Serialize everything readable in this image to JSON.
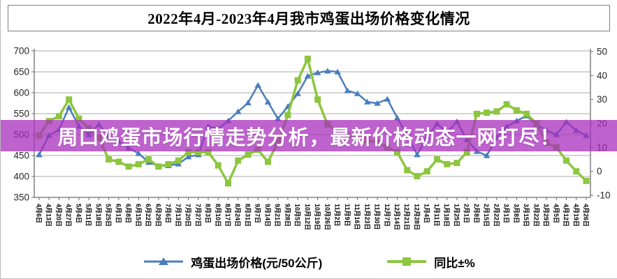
{
  "page": {
    "title": "2022年4月-2023年4月我市鸡蛋出场价格变化情况",
    "banner": "周口鸡蛋市场行情走势分析，最新价格动态一网打尽！"
  },
  "chart_data": {
    "type": "line",
    "title": "2022年4月-2023年4月我市鸡蛋出场价格变化情况",
    "grid": true,
    "legend_position": "bottom",
    "categories": [
      "4月6日",
      "4月13日",
      "4月20日",
      "4月27日",
      "5月4日",
      "5月11日",
      "5月18日",
      "5月25日",
      "6月1日",
      "6月8日",
      "6月15日",
      "6月22日",
      "6月29日",
      "7月6日",
      "7月13日",
      "7月20日",
      "7月27日",
      "8月3日",
      "8月10日",
      "8月17日",
      "8月24日",
      "8月31日",
      "9月7日",
      "9月14日",
      "9月21日",
      "9月28日",
      "10月5日",
      "10月12日",
      "10月19日",
      "10月26日",
      "11月2日",
      "11月9日",
      "11月16日",
      "11月23日",
      "11月30日",
      "12月7日",
      "12月14日",
      "12月21日",
      "12月28日",
      "1月4日",
      "1月11日",
      "1月18日",
      "1月25日",
      "2月1日",
      "2月8日",
      "2月15日",
      "2月22日",
      "3月1日",
      "3月8日",
      "3月15日",
      "3月22日",
      "3月29日",
      "4月5日",
      "4月12日",
      "4月19日",
      "4月26日"
    ],
    "series": [
      {
        "name": "鸡蛋出场价格(元/50公斤)",
        "axis": "left",
        "marker": "triangle",
        "color": "#4a7ebb",
        "values": [
          452,
          498,
          512,
          565,
          520,
          500,
          524,
          498,
          484,
          468,
          455,
          434,
          425,
          426,
          430,
          447,
          452,
          520,
          514,
          533,
          555,
          576,
          618,
          578,
          538,
          567,
          598,
          640,
          648,
          652,
          650,
          605,
          598,
          578,
          575,
          585,
          540,
          498,
          452,
          495,
          526,
          505,
          531,
          488,
          460,
          450,
          493,
          519,
          533,
          545,
          524,
          510,
          500,
          530,
          510,
          498
        ]
      },
      {
        "name": "同比±%",
        "axis": "right",
        "marker": "square",
        "color": "#8dc63f",
        "values": [
          15,
          21,
          23,
          30,
          22,
          18,
          14,
          5,
          4,
          2,
          3,
          5,
          2,
          3,
          4.5,
          8,
          8,
          8,
          2.5,
          -5,
          4.5,
          7,
          9,
          4,
          12,
          23.5,
          38,
          47,
          30,
          19.5,
          17,
          15,
          14,
          13,
          12,
          10,
          8,
          0.5,
          -2,
          0,
          5,
          3,
          3.5,
          8,
          24,
          24.5,
          25,
          28,
          25.5,
          24,
          20,
          12,
          10,
          4.5,
          0,
          -4
        ]
      }
    ],
    "left_axis": {
      "min": 350,
      "max": 700,
      "step": 50,
      "ticks": [
        350,
        400,
        450,
        500,
        550,
        600,
        650,
        700
      ]
    },
    "right_axis": {
      "min": -10,
      "max": 50,
      "step": 10,
      "ticks": [
        -10,
        0,
        10,
        20,
        30,
        40,
        50
      ]
    }
  },
  "colors": {
    "price_line": "#4a7ebb",
    "yoy_line": "#8dc63f",
    "banner_bg": "#a82dbc",
    "banner_text": "#ffffff",
    "grid": "#a9a9a9",
    "axis": "#6e6e6e"
  }
}
